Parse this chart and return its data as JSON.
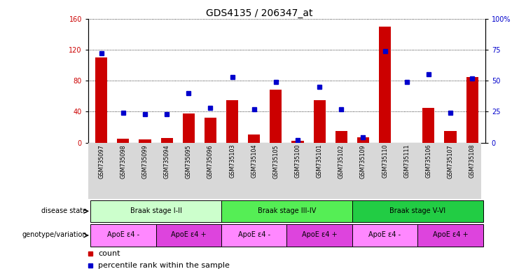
{
  "title": "GDS4135 / 206347_at",
  "samples": [
    "GSM735097",
    "GSM735098",
    "GSM735099",
    "GSM735094",
    "GSM735095",
    "GSM735096",
    "GSM735103",
    "GSM735104",
    "GSM735105",
    "GSM735100",
    "GSM735101",
    "GSM735102",
    "GSM735109",
    "GSM735110",
    "GSM735111",
    "GSM735106",
    "GSM735107",
    "GSM735108"
  ],
  "bar_values": [
    110,
    5,
    4,
    6,
    38,
    32,
    55,
    10,
    68,
    2,
    55,
    15,
    7,
    150,
    0,
    45,
    15,
    85
  ],
  "dot_values": [
    72,
    24,
    23,
    23,
    40,
    28,
    53,
    27,
    49,
    2,
    45,
    27,
    4,
    74,
    49,
    55,
    24,
    52
  ],
  "ylim_left": [
    0,
    160
  ],
  "ylim_right": [
    0,
    100
  ],
  "yticks_left": [
    0,
    40,
    80,
    120,
    160
  ],
  "yticks_right": [
    0,
    25,
    50,
    75,
    100
  ],
  "ytick_labels_right": [
    "0",
    "25",
    "50",
    "75",
    "100%"
  ],
  "bar_color": "#cc0000",
  "dot_color": "#0000cc",
  "background_color": "#ffffff",
  "disease_state_groups": [
    {
      "label": "Braak stage I-II",
      "start": 0,
      "end": 6,
      "color": "#ccffcc"
    },
    {
      "label": "Braak stage III-IV",
      "start": 6,
      "end": 12,
      "color": "#55ee55"
    },
    {
      "label": "Braak stage V-VI",
      "start": 12,
      "end": 18,
      "color": "#22cc44"
    }
  ],
  "genotype_groups": [
    {
      "label": "ApoE ε4 -",
      "start": 0,
      "end": 3,
      "color": "#ff88ff"
    },
    {
      "label": "ApoE ε4 +",
      "start": 3,
      "end": 6,
      "color": "#dd44dd"
    },
    {
      "label": "ApoE ε4 -",
      "start": 6,
      "end": 9,
      "color": "#ff88ff"
    },
    {
      "label": "ApoE ε4 +",
      "start": 9,
      "end": 12,
      "color": "#dd44dd"
    },
    {
      "label": "ApoE ε4 -",
      "start": 12,
      "end": 15,
      "color": "#ff88ff"
    },
    {
      "label": "ApoE ε4 +",
      "start": 15,
      "end": 18,
      "color": "#dd44dd"
    }
  ],
  "row_label_disease": "disease state",
  "row_label_genotype": "genotype/variation",
  "title_fontsize": 10,
  "tick_fontsize": 7,
  "annotation_fontsize": 7,
  "legend_fontsize": 8
}
